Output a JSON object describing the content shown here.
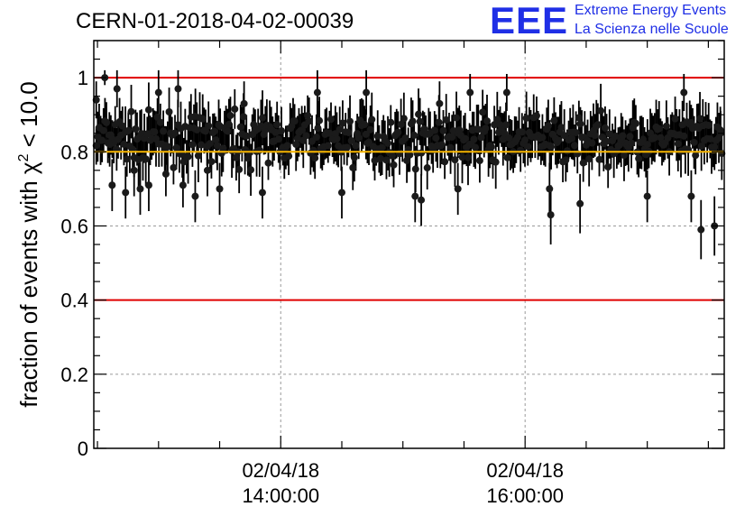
{
  "title": "CERN-01-2018-04-02-00039",
  "logo": {
    "mark": "EEE",
    "line1": "Extreme Energy Events",
    "line2": "La Scienza nelle Scuole",
    "color": "#1f2fe6"
  },
  "colors": {
    "reference_line": "#e00000",
    "mean_line": "#f5b400",
    "points": "#000000",
    "grid": "#9a9a9a"
  },
  "chart_data": {
    "type": "scatter",
    "title": "CERN-01-2018-04-02-00039",
    "ylabel_prefix": "fraction of events with ",
    "ylabel_symbol": "χ",
    "ylabel_exponent": "2",
    "ylabel_suffix": " < 10.0",
    "xlabel": "",
    "ylim": [
      0,
      1.1
    ],
    "yticks": [
      0,
      0.2,
      0.4,
      0.6,
      0.8,
      1
    ],
    "ytick_labels": [
      "0",
      "0.2",
      "0.4",
      "0.6",
      "0.8",
      "1"
    ],
    "xlim_hours": [
      12.47,
      17.63
    ],
    "xticks": [
      {
        "hour": 14,
        "date": "02/04/18",
        "time": "14:00:00"
      },
      {
        "hour": 16,
        "date": "02/04/18",
        "time": "16:00:00"
      }
    ],
    "grid": true,
    "reference_lines": [
      1.0,
      0.4
    ],
    "mean_line": 0.8,
    "points": [
      {
        "hour": 12.49,
        "y": 0.94,
        "err": 0.05
      },
      {
        "hour": 12.56,
        "y": 1.0,
        "err": 0.02
      },
      {
        "hour": 12.6,
        "y": 0.82,
        "err": 0.06
      },
      {
        "hour": 12.62,
        "y": 0.71,
        "err": 0.07
      },
      {
        "hour": 12.66,
        "y": 0.97,
        "err": 0.05
      },
      {
        "hour": 12.73,
        "y": 0.69,
        "err": 0.07
      },
      {
        "hour": 12.8,
        "y": 0.75,
        "err": 0.07
      },
      {
        "hour": 12.85,
        "y": 0.7,
        "err": 0.07
      },
      {
        "hour": 12.92,
        "y": 0.71,
        "err": 0.07
      },
      {
        "hour": 13.0,
        "y": 0.96,
        "err": 0.06
      },
      {
        "hour": 13.06,
        "y": 0.74,
        "err": 0.06
      },
      {
        "hour": 13.16,
        "y": 0.97,
        "err": 0.05
      },
      {
        "hour": 13.2,
        "y": 0.71,
        "err": 0.06
      },
      {
        "hour": 13.3,
        "y": 0.68,
        "err": 0.07
      },
      {
        "hour": 13.4,
        "y": 0.75,
        "err": 0.07
      },
      {
        "hour": 13.5,
        "y": 0.7,
        "err": 0.07
      },
      {
        "hour": 13.7,
        "y": 0.93,
        "err": 0.06
      },
      {
        "hour": 13.85,
        "y": 0.69,
        "err": 0.07
      },
      {
        "hour": 14.3,
        "y": 0.96,
        "err": 0.06
      },
      {
        "hour": 14.5,
        "y": 0.69,
        "err": 0.07
      },
      {
        "hour": 14.7,
        "y": 0.96,
        "err": 0.06
      },
      {
        "hour": 15.1,
        "y": 0.68,
        "err": 0.07
      },
      {
        "hour": 15.15,
        "y": 0.67,
        "err": 0.07
      },
      {
        "hour": 15.3,
        "y": 0.93,
        "err": 0.06
      },
      {
        "hour": 15.45,
        "y": 0.7,
        "err": 0.07
      },
      {
        "hour": 15.55,
        "y": 0.96,
        "err": 0.05
      },
      {
        "hour": 15.85,
        "y": 0.96,
        "err": 0.05
      },
      {
        "hour": 16.2,
        "y": 0.7,
        "err": 0.07
      },
      {
        "hour": 16.21,
        "y": 0.63,
        "err": 0.08
      },
      {
        "hour": 16.45,
        "y": 0.66,
        "err": 0.08
      },
      {
        "hour": 17.0,
        "y": 0.68,
        "err": 0.07
      },
      {
        "hour": 17.3,
        "y": 0.96,
        "err": 0.05
      },
      {
        "hour": 17.36,
        "y": 0.68,
        "err": 0.07
      },
      {
        "hour": 17.44,
        "y": 0.59,
        "err": 0.08
      },
      {
        "hour": 17.55,
        "y": 0.6,
        "err": 0.08
      },
      {
        "hour": 17.6,
        "y": 0.85,
        "err": 0.06
      }
    ],
    "bulk_band": [
      0.74,
      0.93
    ]
  }
}
